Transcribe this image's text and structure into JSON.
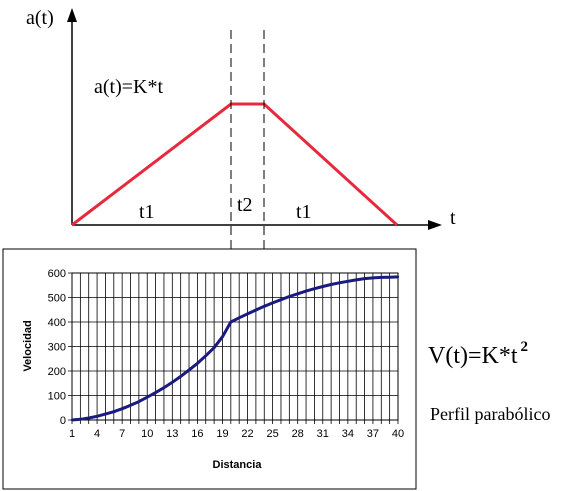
{
  "top_diagram": {
    "y_axis_label": "a(t)",
    "x_axis_label": "t",
    "formula": "a(t)=K*t",
    "segments": [
      "t1",
      "t2",
      "t1"
    ],
    "line_color": "#e8283c"
  },
  "equation": {
    "main": "V(t)=K*t",
    "exponent": "2"
  },
  "caption": "Perfil parabólico",
  "chart_data": {
    "type": "line",
    "title": "",
    "xlabel": "Distancia",
    "ylabel": "Velocidad",
    "xlim": [
      1,
      40
    ],
    "ylim": [
      0,
      600
    ],
    "grid": true,
    "x_ticks": [
      1,
      4,
      7,
      10,
      13,
      16,
      19,
      22,
      25,
      28,
      31,
      34,
      37,
      40
    ],
    "y_ticks": [
      0,
      100,
      200,
      300,
      400,
      500,
      600
    ],
    "line_color": "#1a1a80",
    "x": [
      1,
      2,
      3,
      4,
      5,
      6,
      7,
      8,
      9,
      10,
      11,
      12,
      13,
      14,
      15,
      16,
      17,
      18,
      19,
      20,
      21,
      22,
      23,
      24,
      25,
      26,
      27,
      28,
      29,
      30,
      31,
      32,
      33,
      34,
      35,
      36,
      37,
      38,
      39,
      40
    ],
    "values": [
      0,
      3,
      8,
      15,
      24,
      34,
      46,
      60,
      75,
      93,
      112,
      132,
      154,
      178,
      204,
      231,
      262,
      295,
      340,
      400,
      417,
      433,
      449,
      464,
      478,
      491,
      504,
      515,
      526,
      536,
      545,
      553,
      560,
      566,
      572,
      577,
      580,
      582,
      583,
      584
    ]
  }
}
